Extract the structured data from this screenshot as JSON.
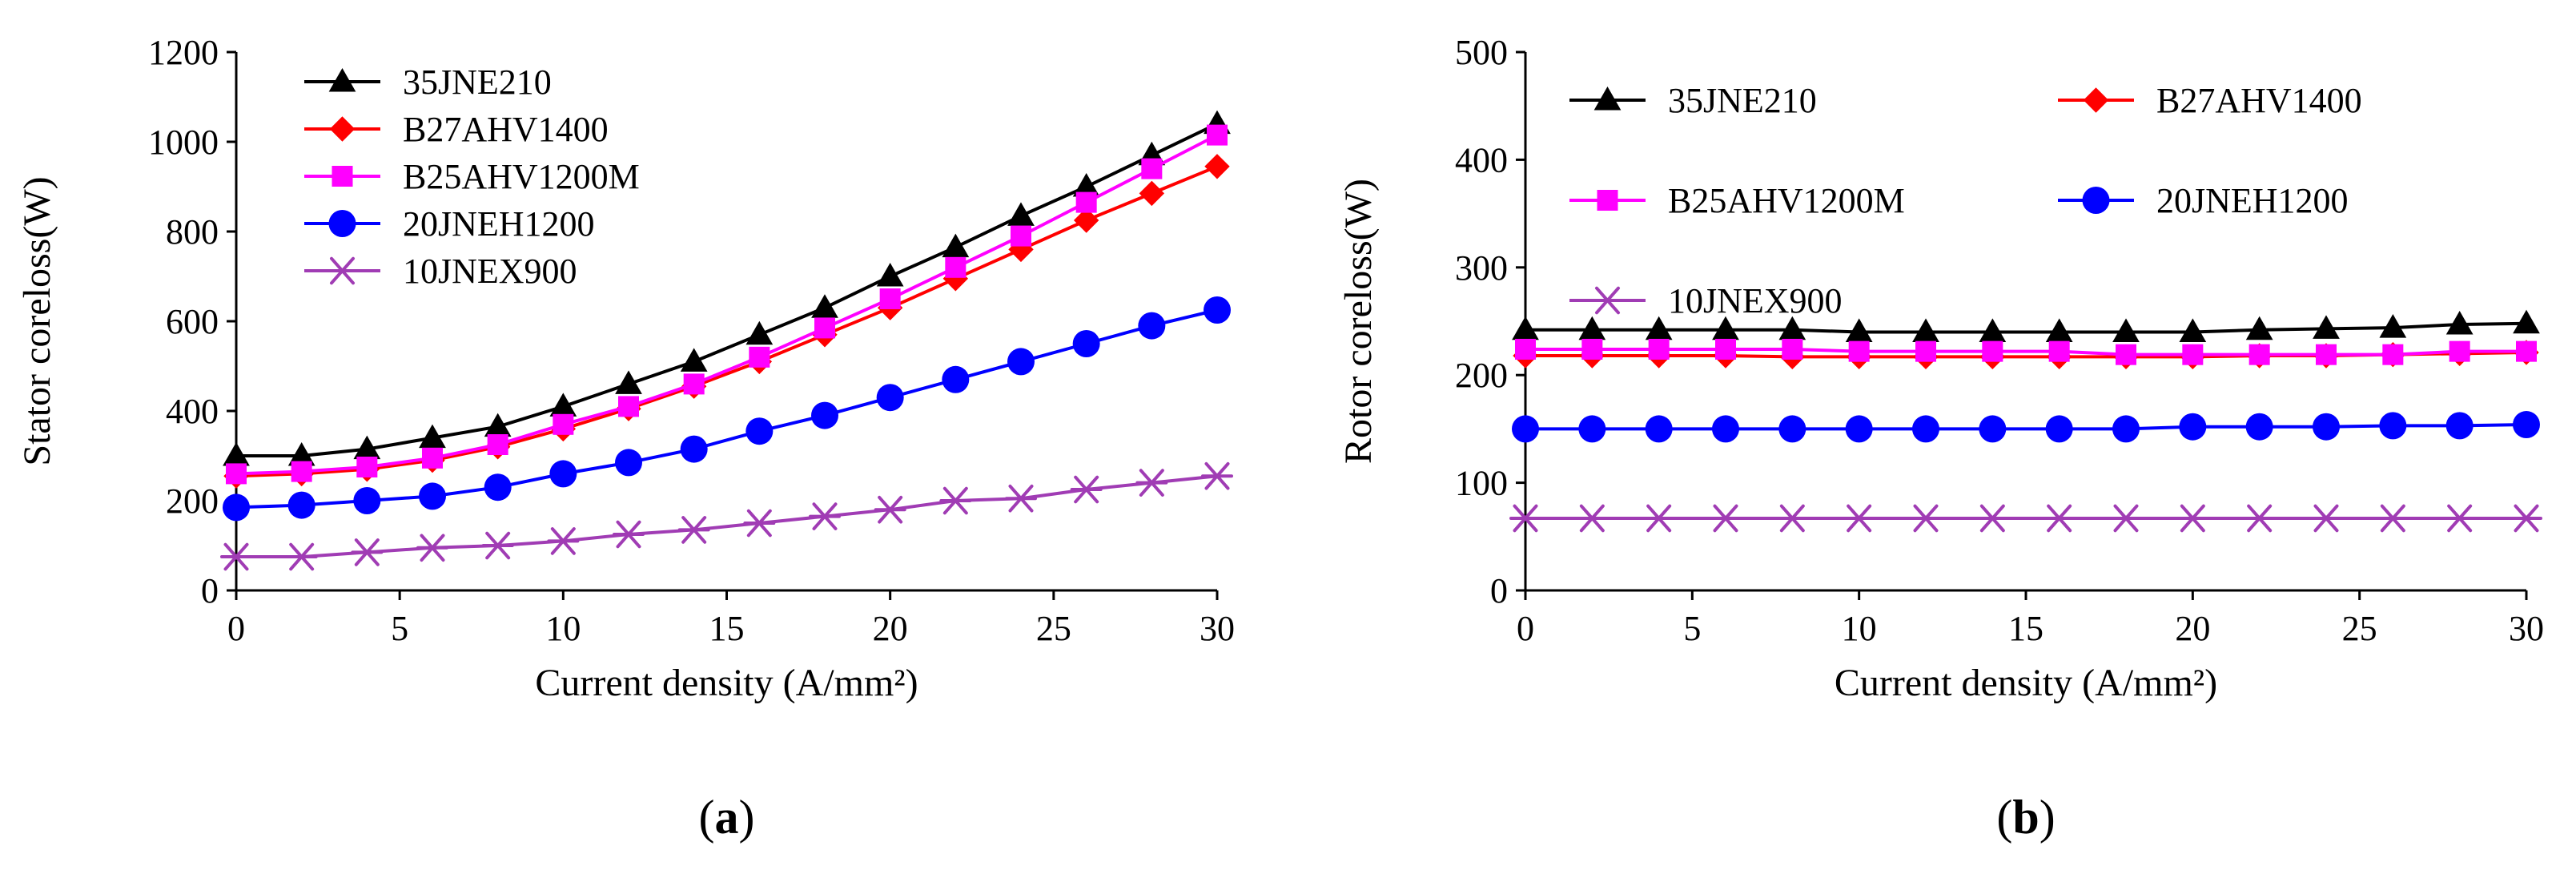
{
  "colors": {
    "35JNE210": "#000000",
    "B27AHV1400": "#ff0000",
    "B25AHV1200M": "#ff00ff",
    "20JNEH1200": "#0000ff",
    "10JNEX900": "#a03cb4"
  },
  "chart_data": [
    {
      "type": "line",
      "panel_label": "(a)",
      "panel_label_letter": "a",
      "xlabel": "Current density (A/mm²)",
      "ylabel": "Stator coreloss(W)",
      "xlim": [
        0,
        30
      ],
      "ylim": [
        0,
        1200
      ],
      "xticks": [
        0,
        5,
        10,
        15,
        20,
        25,
        30
      ],
      "yticks": [
        0,
        200,
        400,
        600,
        800,
        1000,
        1200
      ],
      "legend_layout": "single-column-top-left",
      "x": [
        0,
        2,
        4,
        6,
        8,
        10,
        12,
        14,
        16,
        18,
        20,
        22,
        24,
        26,
        28,
        30
      ],
      "series": [
        {
          "name": "35JNE210",
          "marker": "triangle",
          "values": [
            300,
            300,
            315,
            340,
            365,
            410,
            460,
            510,
            570,
            630,
            700,
            765,
            835,
            900,
            970,
            1040
          ]
        },
        {
          "name": "B27AHV1400",
          "marker": "diamond",
          "values": [
            255,
            260,
            270,
            290,
            320,
            360,
            405,
            455,
            510,
            570,
            630,
            695,
            760,
            825,
            885,
            945
          ]
        },
        {
          "name": "B25AHV1200M",
          "marker": "square",
          "values": [
            260,
            265,
            275,
            295,
            325,
            370,
            410,
            460,
            520,
            585,
            650,
            720,
            790,
            865,
            940,
            1015
          ]
        },
        {
          "name": "20JNEH1200",
          "marker": "circle",
          "values": [
            185,
            190,
            200,
            210,
            230,
            260,
            285,
            315,
            355,
            390,
            430,
            470,
            510,
            550,
            590,
            625
          ]
        },
        {
          "name": "10JNEX900",
          "marker": "star",
          "values": [
            75,
            75,
            85,
            95,
            100,
            110,
            125,
            135,
            150,
            165,
            180,
            200,
            205,
            225,
            240,
            255
          ]
        }
      ]
    },
    {
      "type": "line",
      "panel_label": "(b)",
      "panel_label_letter": "b",
      "xlabel": "Current density (A/mm²)",
      "ylabel": "Rotor coreloss(W)",
      "xlim": [
        0,
        30
      ],
      "ylim": [
        0,
        500
      ],
      "xticks": [
        0,
        5,
        10,
        15,
        20,
        25,
        30
      ],
      "yticks": [
        0,
        100,
        200,
        300,
        400,
        500
      ],
      "legend_layout": "two-column-top",
      "x": [
        0,
        2,
        4,
        6,
        8,
        10,
        12,
        14,
        16,
        18,
        20,
        22,
        24,
        26,
        28,
        30
      ],
      "series": [
        {
          "name": "35JNE210",
          "marker": "triangle",
          "values": [
            242,
            242,
            242,
            242,
            242,
            240,
            240,
            240,
            240,
            240,
            240,
            242,
            243,
            244,
            247,
            248
          ]
        },
        {
          "name": "B27AHV1400",
          "marker": "diamond",
          "values": [
            218,
            218,
            218,
            218,
            217,
            217,
            217,
            217,
            217,
            217,
            217,
            218,
            218,
            219,
            220,
            221
          ]
        },
        {
          "name": "B25AHV1200M",
          "marker": "square",
          "values": [
            224,
            224,
            224,
            224,
            224,
            222,
            222,
            222,
            222,
            219,
            219,
            219,
            219,
            219,
            222,
            222
          ]
        },
        {
          "name": "20JNEH1200",
          "marker": "circle",
          "values": [
            150,
            150,
            150,
            150,
            150,
            150,
            150,
            150,
            150,
            150,
            152,
            152,
            152,
            153,
            153,
            154
          ]
        },
        {
          "name": "10JNEX900",
          "marker": "star",
          "values": [
            67,
            67,
            67,
            67,
            67,
            67,
            67,
            67,
            67,
            67,
            67,
            67,
            67,
            67,
            67,
            67
          ]
        }
      ]
    }
  ]
}
